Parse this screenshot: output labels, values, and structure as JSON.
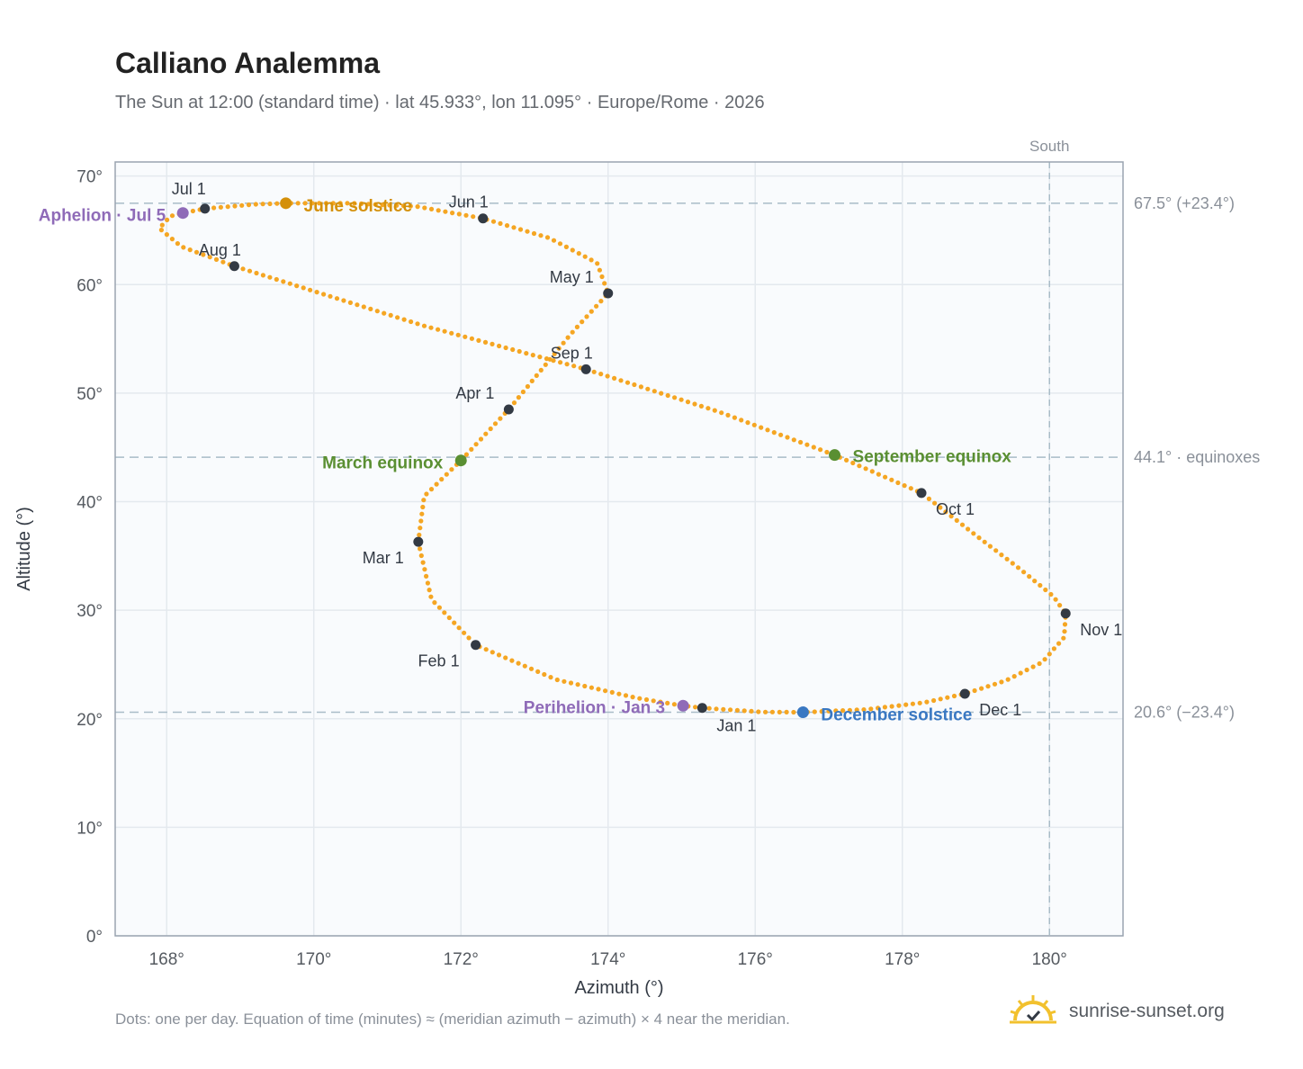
{
  "header": {
    "title": "Calliano Analemma",
    "subtitle": "The Sun at 12:00 (standard time) · lat 45.933°, lon 11.095° · Europe/Rome · 2026"
  },
  "footer": {
    "note": "Dots: one per day. Equation of time (minutes) ≈ (meridian azimuth − azimuth) × 4 near the meridian.",
    "brand": "sunrise-sunset.org"
  },
  "chart_data": {
    "type": "scatter",
    "xlabel": "Azimuth (°)",
    "ylabel": "Altitude (°)",
    "xlim": [
      167.3,
      181.0
    ],
    "ylim": [
      0,
      71.3
    ],
    "x_ticks": [
      {
        "value": 168,
        "label": "168°"
      },
      {
        "value": 170,
        "label": "170°"
      },
      {
        "value": 172,
        "label": "172°"
      },
      {
        "value": 174,
        "label": "174°"
      },
      {
        "value": 176,
        "label": "176°"
      },
      {
        "value": 178,
        "label": "178°"
      },
      {
        "value": 180,
        "label": "180°"
      }
    ],
    "y_ticks": [
      {
        "value": 0,
        "label": "0°"
      },
      {
        "value": 10,
        "label": "10°"
      },
      {
        "value": 20,
        "label": "20°"
      },
      {
        "value": 30,
        "label": "30°"
      },
      {
        "value": 40,
        "label": "40°"
      },
      {
        "value": 50,
        "label": "50°"
      },
      {
        "value": 60,
        "label": "60°"
      },
      {
        "value": 70,
        "label": "70°"
      }
    ],
    "grid": true,
    "path_color": "#f5a623",
    "month_marker_color": "#333a44",
    "meridian": {
      "azimuth": 180,
      "label": "South"
    },
    "reference_lines": [
      {
        "altitude": 67.5,
        "label": "67.5° (+23.4°)"
      },
      {
        "altitude": 44.1,
        "label": "44.1° · equinoxes"
      },
      {
        "altitude": 20.6,
        "label": "20.6° (−23.4°)"
      }
    ],
    "month_markers": [
      {
        "label": "Jan 1",
        "azimuth": 175.28,
        "altitude": 21.0
      },
      {
        "label": "Feb 1",
        "azimuth": 172.2,
        "altitude": 26.8
      },
      {
        "label": "Mar 1",
        "azimuth": 171.42,
        "altitude": 36.3
      },
      {
        "label": "Apr 1",
        "azimuth": 172.65,
        "altitude": 48.5
      },
      {
        "label": "May 1",
        "azimuth": 174.0,
        "altitude": 59.2
      },
      {
        "label": "Jun 1",
        "azimuth": 172.3,
        "altitude": 66.1
      },
      {
        "label": "Jul 1",
        "azimuth": 168.52,
        "altitude": 67.0
      },
      {
        "label": "Aug 1",
        "azimuth": 168.92,
        "altitude": 61.7
      },
      {
        "label": "Sep 1",
        "azimuth": 173.7,
        "altitude": 52.2
      },
      {
        "label": "Oct 1",
        "azimuth": 178.26,
        "altitude": 40.8
      },
      {
        "label": "Nov 1",
        "azimuth": 180.22,
        "altitude": 29.7
      },
      {
        "label": "Dec 1",
        "azimuth": 178.85,
        "altitude": 22.3
      }
    ],
    "events": [
      {
        "label": "June solstice",
        "azimuth": 169.62,
        "altitude": 67.5,
        "color": "#d4900a"
      },
      {
        "label": "March equinox",
        "azimuth": 172.0,
        "altitude": 43.8,
        "color": "#5a8f32"
      },
      {
        "label": "September equinox",
        "azimuth": 177.08,
        "altitude": 44.3,
        "color": "#5a8f32"
      },
      {
        "label": "December solstice",
        "azimuth": 176.65,
        "altitude": 20.6,
        "color": "#3a78c2"
      },
      {
        "label": "Aphelion · Jul 5",
        "azimuth": 168.22,
        "altitude": 66.6,
        "color": "#8f6bb8"
      },
      {
        "label": "Perihelion · Jan 3",
        "azimuth": 175.02,
        "altitude": 21.2,
        "color": "#8f6bb8"
      }
    ],
    "path": [
      [
        175.28,
        21.0
      ],
      [
        176.1,
        20.62
      ],
      [
        176.65,
        20.6
      ],
      [
        177.5,
        20.85
      ],
      [
        178.3,
        21.5
      ],
      [
        178.85,
        22.3
      ],
      [
        179.4,
        23.5
      ],
      [
        179.9,
        25.2
      ],
      [
        180.2,
        27.5
      ],
      [
        180.22,
        29.7
      ],
      [
        180.05,
        31.3
      ],
      [
        179.6,
        33.8
      ],
      [
        179.0,
        36.9
      ],
      [
        178.26,
        40.8
      ],
      [
        177.08,
        44.3
      ],
      [
        175.5,
        48.3
      ],
      [
        173.7,
        52.2
      ],
      [
        171.5,
        56.2
      ],
      [
        168.92,
        61.7
      ],
      [
        168.2,
        63.5
      ],
      [
        167.9,
        65.2
      ],
      [
        168.05,
        66.3
      ],
      [
        168.22,
        66.6
      ],
      [
        168.52,
        67.0
      ],
      [
        169.2,
        67.4
      ],
      [
        169.62,
        67.5
      ],
      [
        170.5,
        67.5
      ],
      [
        171.4,
        67.2
      ],
      [
        172.3,
        66.1
      ],
      [
        173.2,
        64.3
      ],
      [
        173.85,
        62.0
      ],
      [
        174.0,
        59.2
      ],
      [
        173.5,
        55.5
      ],
      [
        172.65,
        48.5
      ],
      [
        172.0,
        43.8
      ],
      [
        171.5,
        40.5
      ],
      [
        171.42,
        36.3
      ],
      [
        171.6,
        31.0
      ],
      [
        172.2,
        26.8
      ],
      [
        173.3,
        23.6
      ],
      [
        174.4,
        21.9
      ],
      [
        175.02,
        21.2
      ],
      [
        175.28,
        21.0
      ]
    ]
  }
}
